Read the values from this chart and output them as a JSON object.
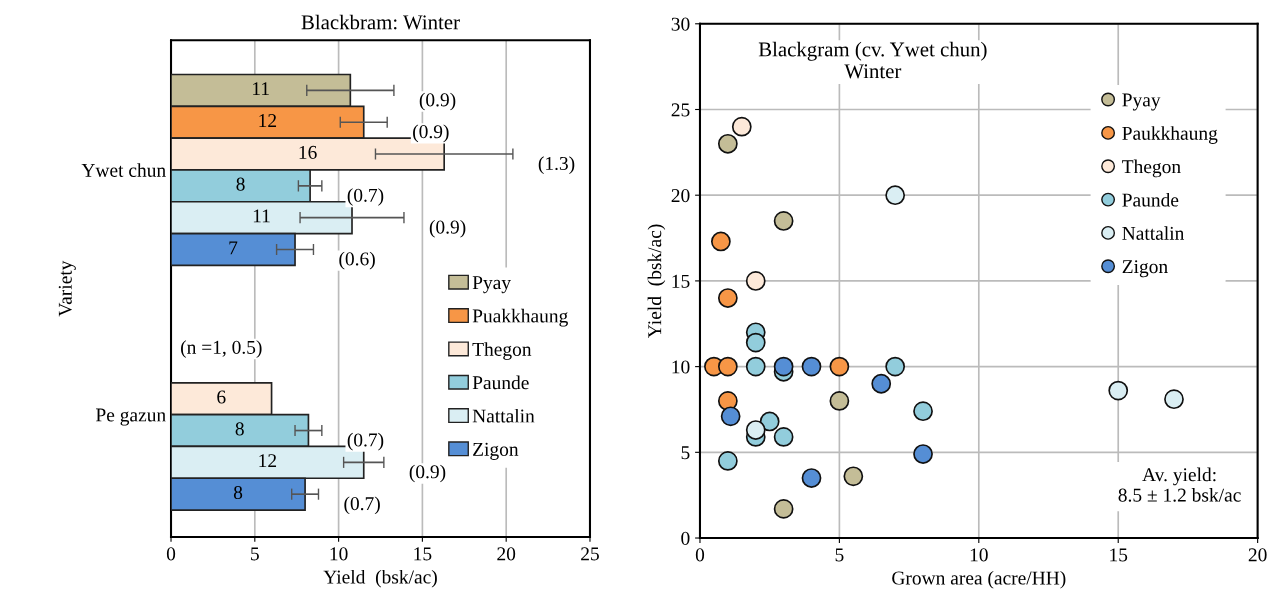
{
  "chart_data": [
    {
      "type": "bar",
      "orientation": "horizontal",
      "title": "Blackbram: Winter",
      "xlabel": "Yield  (bsk/ac)",
      "ylabel": "Variety",
      "categories": [
        "Ywet chun",
        "Pe gazun"
      ],
      "series": [
        {
          "name": "Pyay",
          "color": "#c4bd97",
          "values": [
            10.7,
            null
          ],
          "errors": [
            2.6,
            null
          ],
          "value_labels": [
            "11",
            null
          ]
        },
        {
          "name": "Puakkhaung",
          "color": "#f79646",
          "values": [
            11.5,
            null
          ],
          "errors": [
            1.4,
            null
          ],
          "value_labels": [
            "12",
            null
          ]
        },
        {
          "name": "Thegon",
          "color": "#fde9d9",
          "values": [
            16.3,
            6.0
          ],
          "errors": [
            4.1,
            null
          ],
          "value_labels": [
            "16",
            "6"
          ]
        },
        {
          "name": "Paunde",
          "color": "#92cddc",
          "values": [
            8.3,
            8.2
          ],
          "errors": [
            0.7,
            0.8
          ],
          "value_labels": [
            "8",
            "8"
          ]
        },
        {
          "name": "Nattalin",
          "color": "#daeef3",
          "values": [
            10.8,
            11.5
          ],
          "errors": [
            3.1,
            1.2
          ],
          "value_labels": [
            "11",
            "12"
          ]
        },
        {
          "name": "Zigon",
          "color": "#558ed5",
          "values": [
            7.4,
            8.0
          ],
          "errors": [
            1.1,
            0.8
          ],
          "value_labels": [
            "7",
            "8"
          ]
        }
      ],
      "annotations": [
        "(0.9)",
        "(0.9)",
        "(1.3)",
        "(0.7)",
        "(0.9)",
        "(0.6)",
        "(n =1, 0.5)",
        "(0.7)",
        "(0.9)",
        "(0.7)"
      ],
      "xlim": [
        0,
        25
      ],
      "xticks": [
        0,
        5,
        10,
        15,
        20,
        25
      ],
      "grid": "x",
      "legend": "bottom right"
    },
    {
      "type": "scatter",
      "title": "Blackgram (cv. Ywet chun)\nWinter",
      "xlabel": "Grown area (acre/HH)",
      "ylabel": "Yield  (bsk/ac)",
      "series": [
        {
          "name": "Pyay",
          "color": "#c4bd97",
          "x": [
            1,
            3,
            5,
            5.5,
            3
          ],
          "values": [
            23,
            18.5,
            8,
            3.6,
            1.7
          ]
        },
        {
          "name": "Paukkhaung",
          "color": "#f79646",
          "x": [
            0.75,
            1,
            0.5,
            1,
            5,
            1
          ],
          "values": [
            17.3,
            14,
            10,
            10,
            10,
            8
          ]
        },
        {
          "name": "Thegon",
          "color": "#fde9d9",
          "x": [
            1.5,
            2
          ],
          "values": [
            24,
            15
          ]
        },
        {
          "name": "Paunde",
          "color": "#92cddc",
          "x": [
            2,
            2,
            2,
            3,
            7,
            8,
            2.5,
            2,
            3,
            1
          ],
          "values": [
            12,
            11.4,
            10,
            9.7,
            10,
            7.4,
            6.8,
            5.9,
            5.9,
            4.5
          ]
        },
        {
          "name": "Nattalin",
          "color": "#daeef3",
          "x": [
            7,
            2,
            15,
            17
          ],
          "values": [
            20,
            6.3,
            8.6,
            8.1
          ]
        },
        {
          "name": "Zigon",
          "color": "#558ed5",
          "x": [
            3,
            4,
            6.5,
            1.1,
            8,
            4
          ],
          "values": [
            10,
            10,
            9,
            7.1,
            4.9,
            3.5
          ]
        }
      ],
      "annotations": [
        "Av. yield:\n8.5 ± 1.2 bsk/ac"
      ],
      "xlim": [
        0,
        20
      ],
      "xticks": [
        0,
        5,
        10,
        15,
        20
      ],
      "ylim": [
        0,
        30
      ],
      "yticks": [
        0,
        5,
        10,
        15,
        20,
        25,
        30
      ],
      "grid": true,
      "legend": "top right",
      "marker": "circle"
    }
  ]
}
